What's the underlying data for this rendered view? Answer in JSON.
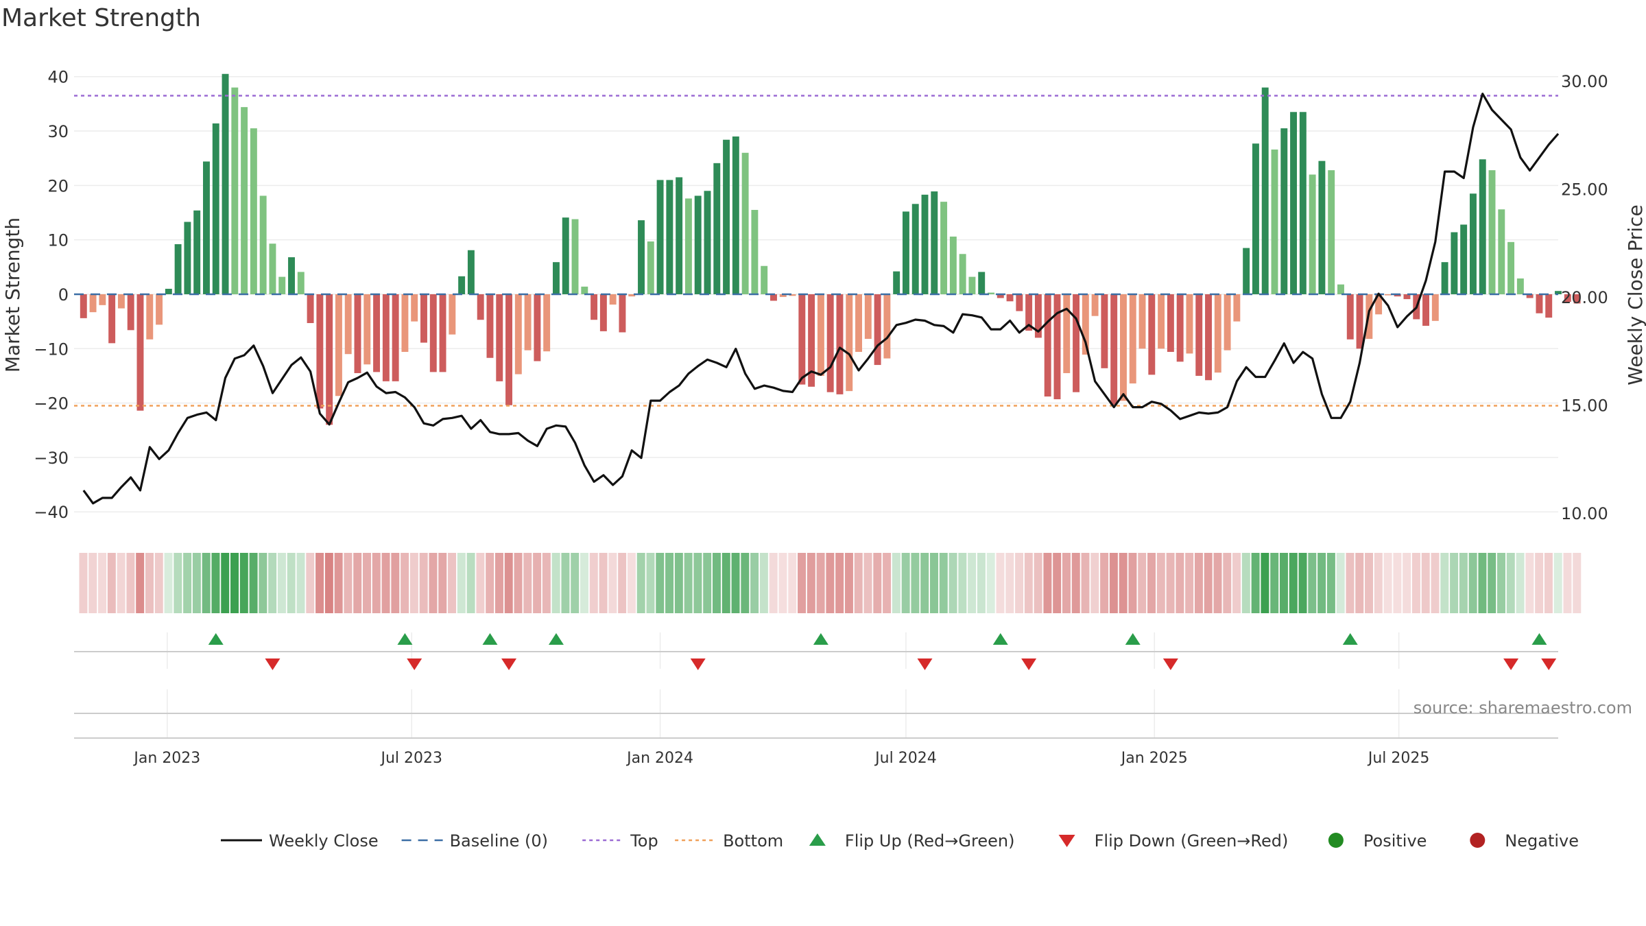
{
  "chart_data": {
    "type": "bar",
    "title": "Market Strength",
    "ylabel": "Market Strength",
    "y2label": "Weekly Close Price",
    "ylim": [
      -43,
      44
    ],
    "y2lim": [
      9.3,
      31.2
    ],
    "yticks": [
      40,
      30,
      20,
      10,
      0,
      -10,
      -20,
      -30,
      -40
    ],
    "y2ticks": [
      "30.00",
      "25.00",
      "20.00",
      "15.00",
      "10.00"
    ],
    "top_line": 36.5,
    "bottom_line": -20.5,
    "xlim": [
      "2022-10-24",
      "2025-10-27"
    ],
    "xticks": [
      {
        "date": "2023-01-01",
        "label": "Jan 2023"
      },
      {
        "date": "2023-07-01",
        "label": "Jul 2023"
      },
      {
        "date": "2024-01-01",
        "label": "Jan 2024"
      },
      {
        "date": "2024-07-01",
        "label": "Jul 2024"
      },
      {
        "date": "2025-01-01",
        "label": "Jan 2025"
      },
      {
        "date": "2025-07-01",
        "label": "Jul 2025"
      }
    ],
    "start_date": "2022-10-31",
    "week_step_days": 7,
    "strength": [
      -4.4,
      -3.3,
      -2,
      -9,
      -2.6,
      -6.6,
      -21.4,
      -8.3,
      -5.6,
      1,
      9.2,
      13.3,
      15.4,
      24.4,
      31.4,
      40.5,
      38,
      34.4,
      30.5,
      18.1,
      9.3,
      3.2,
      6.8,
      4.1,
      -5.3,
      -21,
      -24,
      -18.7,
      -11,
      -14.5,
      -12.9,
      -14.3,
      -16,
      -16,
      -10.6,
      -5,
      -8.9,
      -14.3,
      -14.3,
      -7.4,
      3.3,
      8.1,
      -4.7,
      -11.7,
      -16,
      -20.4,
      -14.7,
      -10.3,
      -12.3,
      -10.5,
      5.9,
      14.1,
      13.8,
      1.4,
      -4.7,
      -6.8,
      -1.9,
      -7,
      -0.4,
      13.6,
      9.7,
      21,
      21,
      21.5,
      17.6,
      18.1,
      19,
      24.1,
      28.4,
      29,
      26,
      15.5,
      5.2,
      -1.2,
      -0.5,
      -0.3,
      -16.6,
      -17,
      -15,
      -18,
      -18.4,
      -17.8,
      -10.6,
      -8.2,
      -13,
      -11.8,
      4.2,
      15.2,
      16.6,
      18.3,
      18.9,
      17,
      10.6,
      7.4,
      3.2,
      4.1,
      0.3,
      -0.7,
      -1.3,
      -3.1,
      -6.7,
      -8,
      -18.8,
      -19.3,
      -14.5,
      -18,
      -11.1,
      -4,
      -13.6,
      -20.3,
      -19.6,
      -16.4,
      -10,
      -14.8,
      -10,
      -10.6,
      -12.4,
      -10.9,
      -15,
      -15.8,
      -14.4,
      -10.3,
      -5,
      8.5,
      27.7,
      38,
      26.6,
      30.5,
      33.5,
      33.5,
      22,
      24.5,
      22.8,
      1.8,
      -8.3,
      -10,
      -8.2,
      -3.7,
      -0.2,
      -0.4,
      -0.9,
      -4.6,
      -5.8,
      -4.9,
      5.9,
      11.4,
      12.8,
      18.5,
      24.8,
      22.8,
      15.6,
      9.6,
      2.9,
      -0.7,
      -3.5,
      -4.3,
      0.6,
      -1.4,
      -1.7
    ],
    "close": [
      11.05,
      10.45,
      10.7,
      10.7,
      11.2,
      11.65,
      11.05,
      13.05,
      12.5,
      12.9,
      13.7,
      14.4,
      14.55,
      14.65,
      14.3,
      16.25,
      17.15,
      17.3,
      17.75,
      16.8,
      15.55,
      16.2,
      16.85,
      17.2,
      16.55,
      14.6,
      14.1,
      15.1,
      16.05,
      16.25,
      16.5,
      15.85,
      15.55,
      15.6,
      15.35,
      14.9,
      14.15,
      14.05,
      14.35,
      14.4,
      14.5,
      13.9,
      14.3,
      13.75,
      13.65,
      13.65,
      13.7,
      13.35,
      13.1,
      13.9,
      14.05,
      14,
      13.25,
      12.2,
      11.45,
      11.75,
      11.3,
      11.7,
      12.9,
      12.55,
      15.2,
      15.2,
      15.6,
      15.9,
      16.45,
      16.8,
      17.1,
      16.95,
      16.75,
      17.6,
      16.45,
      15.75,
      15.9,
      15.8,
      15.65,
      15.6,
      16.25,
      16.55,
      16.4,
      16.75,
      17.65,
      17.35,
      16.6,
      17.15,
      17.75,
      18.1,
      18.7,
      18.8,
      18.95,
      18.9,
      18.7,
      18.65,
      18.35,
      19.2,
      19.15,
      19.05,
      18.5,
      18.5,
      18.9,
      18.35,
      18.7,
      18.4,
      18.85,
      19.25,
      19.45,
      19,
      17.9,
      16.1,
      15.5,
      14.9,
      15.5,
      14.9,
      14.9,
      15.15,
      15.05,
      14.75,
      14.35,
      14.5,
      14.65,
      14.6,
      14.65,
      14.9,
      16.1,
      16.75,
      16.3,
      16.3,
      17.05,
      17.85,
      16.95,
      17.45,
      17.15,
      15.5,
      14.4,
      14.4,
      15.15,
      16.95,
      19.35,
      20.15,
      19.6,
      18.6,
      19.1,
      19.5,
      20.75,
      22.55,
      25.8,
      25.8,
      25.5,
      27.85,
      29.4,
      28.65,
      28.2,
      27.75,
      26.45,
      25.85,
      26.45,
      27.05,
      27.55
    ],
    "flip_up_dates": [
      "2023-02-06",
      "2023-06-26",
      "2023-08-28",
      "2023-10-16",
      "2024-04-29",
      "2024-09-09",
      "2024-12-16",
      "2025-05-26",
      "2025-10-13"
    ],
    "flip_down_dates": [
      "2023-03-20",
      "2023-07-03",
      "2023-09-11",
      "2024-01-29",
      "2024-07-15",
      "2024-09-30",
      "2025-01-13",
      "2025-09-22",
      "2025-10-20"
    ],
    "legend": [
      {
        "label": "Weekly Close",
        "kind": "line",
        "color": "#111111"
      },
      {
        "label": "Baseline (0)",
        "kind": "dashed",
        "color": "#3b6ea5"
      },
      {
        "label": "Top",
        "kind": "dotted",
        "color": "#9b6bd4"
      },
      {
        "label": "Bottom",
        "kind": "dotted",
        "color": "#f0a05a"
      },
      {
        "label": "Flip Up (Red→Green)",
        "kind": "tri-up",
        "color": "#2a9d4a"
      },
      {
        "label": "Flip Down (Green→Red)",
        "kind": "tri-down",
        "color": "#d62a2a"
      },
      {
        "label": "Positive",
        "kind": "dot",
        "color": "#228b22"
      },
      {
        "label": "Negative",
        "kind": "dot",
        "color": "#b22222"
      }
    ],
    "source": "source: sharemaestro.com",
    "colors": {
      "pos_strong": "#2e8b57",
      "pos_weak": "#7fc380",
      "neg_strong": "#cd5c5c",
      "neg_weak": "#e9967a"
    }
  }
}
